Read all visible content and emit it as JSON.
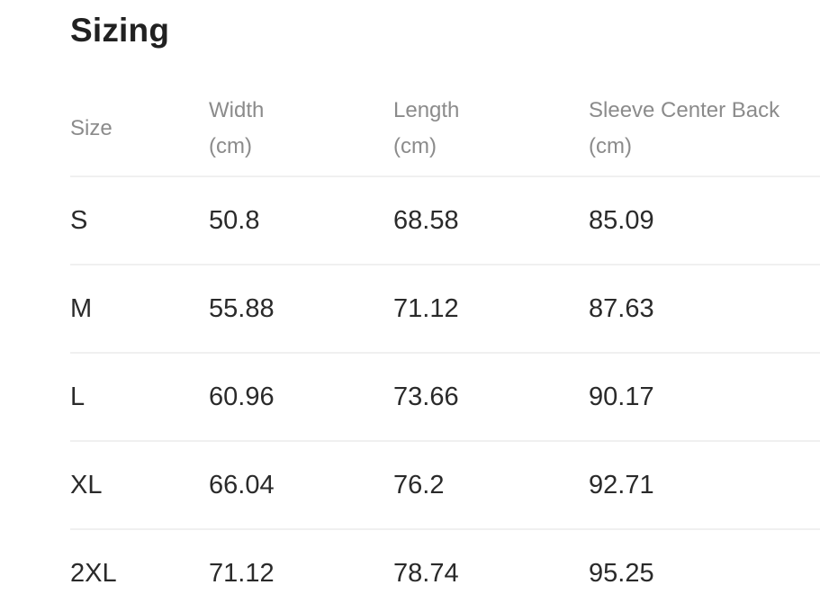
{
  "page": {
    "title": "Sizing"
  },
  "table": {
    "columns": [
      {
        "label": "Size",
        "sublabel": ""
      },
      {
        "label": "Width",
        "sublabel": "(cm)"
      },
      {
        "label": "Length",
        "sublabel": "(cm)"
      },
      {
        "label": "Sleeve Center Back",
        "sublabel": "(cm)"
      }
    ],
    "rows": [
      {
        "size": "S",
        "width_cm": "50.8",
        "length_cm": "68.58",
        "sleeve_center_back_cm": "85.09"
      },
      {
        "size": "M",
        "width_cm": "55.88",
        "length_cm": "71.12",
        "sleeve_center_back_cm": "87.63"
      },
      {
        "size": "L",
        "width_cm": "60.96",
        "length_cm": "73.66",
        "sleeve_center_back_cm": "90.17"
      },
      {
        "size": "XL",
        "width_cm": "66.04",
        "length_cm": "76.2",
        "sleeve_center_back_cm": "92.71"
      },
      {
        "size": "2XL",
        "width_cm": "71.12",
        "length_cm": "78.74",
        "sleeve_center_back_cm": "95.25"
      }
    ]
  },
  "colors": {
    "background": "#ffffff",
    "heading_text": "#212121",
    "header_text": "#8b8b8b",
    "body_text": "#2a2a2a",
    "divider": "#f0f0f0"
  }
}
